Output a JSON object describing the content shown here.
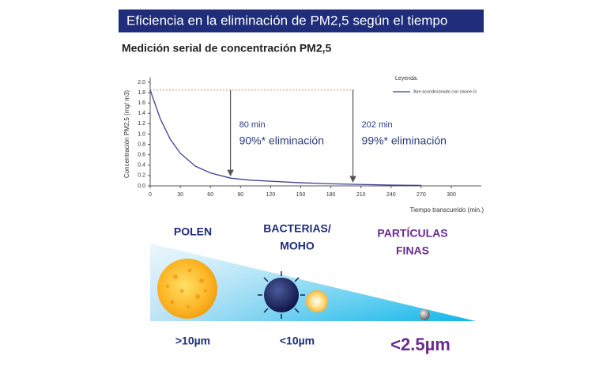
{
  "chart_data": {
    "type": "line",
    "title": "Eficiencia en la eliminación de PM2,5 según el tiempo",
    "subtitle": "Medición serial de concentración PM2,5",
    "x_label": "Tiempo transcurrido (min.)",
    "y_label": "Concentración PM2,5 (mg/ m3)",
    "x": [
      0,
      10,
      20,
      30,
      45,
      60,
      80,
      100,
      120,
      150,
      180,
      202,
      240,
      270
    ],
    "series": [
      {
        "name": "Aire acondicionado con nanoe-G",
        "color": "#3d3f8f",
        "values": [
          1.85,
          1.3,
          0.9,
          0.63,
          0.38,
          0.25,
          0.15,
          0.11,
          0.09,
          0.06,
          0.04,
          0.03,
          0.015,
          0.01
        ]
      }
    ],
    "xlim": [
      0,
      330
    ],
    "ylim": [
      0,
      2.0
    ],
    "xticks": [
      0,
      30,
      60,
      90,
      120,
      150,
      180,
      210,
      240,
      270,
      300
    ],
    "yticks": [
      {
        "value": 0,
        "label": "0.0"
      },
      0.2,
      0.4,
      0.6,
      0.8,
      {
        "value": 1,
        "label": "1.0"
      },
      1.2,
      1.4,
      1.6,
      1.8,
      {
        "value": 2,
        "label": "2.0"
      }
    ],
    "legend_title": "Leyenda:",
    "legend": "upper right",
    "reference_line": {
      "y": 1.85,
      "color": "#e8946a"
    },
    "annotations": [
      {
        "x": 80,
        "lines": [
          "80 min",
          "90%* eliminación"
        ]
      },
      {
        "x": 202,
        "lines": [
          "202 min",
          "99%* eliminación"
        ]
      }
    ]
  },
  "illustration": {
    "groups": [
      {
        "label": [
          "POLEN"
        ],
        "size": ">10µm"
      },
      {
        "label": [
          "BACTERIAS/",
          "MOHO"
        ],
        "size": "<10µm"
      },
      {
        "label": [
          "PARTÍCULAS",
          "FINAS"
        ],
        "size": "<2.5µm"
      }
    ]
  }
}
